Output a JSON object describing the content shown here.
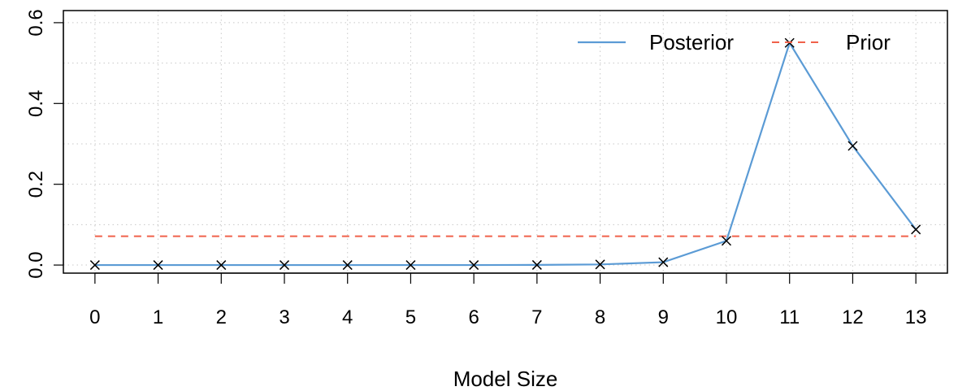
{
  "chart_data": {
    "type": "line",
    "title": "",
    "xlabel": "Model Size",
    "ylabel": "",
    "x": [
      0,
      1,
      2,
      3,
      4,
      5,
      6,
      7,
      8,
      9,
      10,
      11,
      12,
      13
    ],
    "x_tick_labels": [
      "0",
      "1",
      "2",
      "3",
      "4",
      "5",
      "6",
      "7",
      "8",
      "9",
      "10",
      "11",
      "12",
      "13"
    ],
    "y_ticks": [
      0.0,
      0.2,
      0.4,
      0.6
    ],
    "y_tick_labels": [
      "0.0",
      "0.2",
      "0.4",
      "0.6"
    ],
    "xlim": [
      -0.5,
      13.5
    ],
    "ylim": [
      -0.02,
      0.63
    ],
    "grid": true,
    "legend_position": "top-right",
    "series": [
      {
        "name": "Posterior",
        "style": "solid",
        "color": "#5b9bd5",
        "markers": "x",
        "values": [
          0.0,
          0.0,
          0.0,
          0.0,
          0.0,
          0.0,
          0.0,
          0.0003,
          0.0015,
          0.007,
          0.06,
          0.55,
          0.295,
          0.088
        ]
      },
      {
        "name": "Prior",
        "style": "dashed",
        "color": "#f0614b",
        "values": [
          0.0714,
          0.0714,
          0.0714,
          0.0714,
          0.0714,
          0.0714,
          0.0714,
          0.0714,
          0.0714,
          0.0714,
          0.0714,
          0.0714,
          0.0714,
          0.0714
        ]
      }
    ]
  }
}
